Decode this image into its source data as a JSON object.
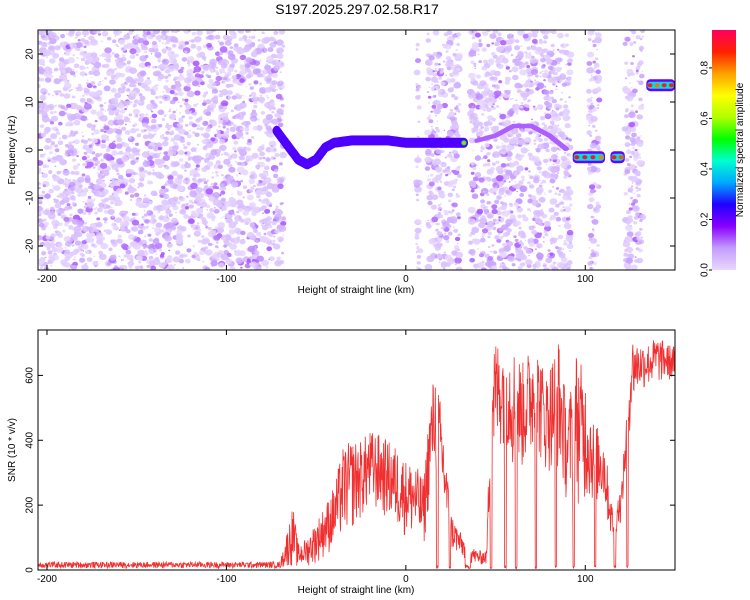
{
  "title": "S197.2025.297.02.58.R17",
  "chart_data": [
    {
      "type": "heatmap",
      "xlabel": "Height of straight line (km)",
      "ylabel": "Frequency (Hz)",
      "xlim": [
        -205,
        150
      ],
      "ylim": [
        -25,
        25
      ],
      "x_ticks": [
        -200,
        -100,
        0,
        100
      ],
      "y_ticks": [
        -20,
        -10,
        0,
        10,
        20
      ],
      "colorbar": {
        "label": "Normalized spectral amplitude",
        "range": [
          0,
          0.95
        ],
        "ticks": [
          0.0,
          0.2,
          0.4,
          0.6,
          0.8
        ],
        "stops": [
          "#e8d8ff",
          "#c49cff",
          "#8800ff",
          "#2000ff",
          "#00a8ff",
          "#00ffd0",
          "#00ff00",
          "#b0ff00",
          "#ffff00",
          "#ffa000",
          "#ff2000",
          "#ff0060"
        ]
      },
      "noise_regions": [
        [
          -205,
          -74
        ],
        [
          -74,
          -68
        ],
        [
          6,
          8
        ],
        [
          12,
          30
        ],
        [
          36,
          92
        ],
        [
          102,
          108
        ],
        [
          122,
          132
        ]
      ],
      "ridge": [
        {
          "x": -72,
          "y": 4
        },
        {
          "x": -66,
          "y": 1
        },
        {
          "x": -60,
          "y": -2
        },
        {
          "x": -55,
          "y": -3
        },
        {
          "x": -50,
          "y": -2
        },
        {
          "x": -45,
          "y": 0.5
        },
        {
          "x": -40,
          "y": 1.5
        },
        {
          "x": -30,
          "y": 2
        },
        {
          "x": -20,
          "y": 2
        },
        {
          "x": -10,
          "y": 2
        },
        {
          "x": 0,
          "y": 1.5
        },
        {
          "x": 10,
          "y": 1.5
        },
        {
          "x": 20,
          "y": 1.5
        },
        {
          "x": 33,
          "y": 1.5
        }
      ],
      "faint_ridge": [
        {
          "x": 40,
          "y": 2
        },
        {
          "x": 50,
          "y": 3
        },
        {
          "x": 60,
          "y": 5
        },
        {
          "x": 70,
          "y": 5
        },
        {
          "x": 80,
          "y": 3
        },
        {
          "x": 90,
          "y": 0
        }
      ],
      "segments": [
        {
          "x0": 93,
          "x1": 111,
          "y": -1.5
        },
        {
          "x0": 114,
          "x1": 122,
          "y": -1.5
        },
        {
          "x0": 134,
          "x1": 150,
          "y": 13.5
        }
      ]
    },
    {
      "type": "line",
      "xlabel": "Height of straight line (km)",
      "ylabel": "SNR (10 * v/v)",
      "xlim": [
        -205,
        150
      ],
      "ylim": [
        0,
        740
      ],
      "x_ticks": [
        -200,
        -100,
        0,
        100
      ],
      "y_ticks": [
        0,
        200,
        400,
        600
      ],
      "color": "#f03030",
      "envelope": [
        {
          "x": -205,
          "lo": 5,
          "hi": 25
        },
        {
          "x": -70,
          "lo": 5,
          "hi": 25
        },
        {
          "x": -63,
          "lo": 10,
          "hi": 200
        },
        {
          "x": -60,
          "lo": 5,
          "hi": 80
        },
        {
          "x": -55,
          "lo": 10,
          "hi": 100
        },
        {
          "x": -50,
          "lo": 20,
          "hi": 150
        },
        {
          "x": -45,
          "lo": 40,
          "hi": 200
        },
        {
          "x": -40,
          "lo": 60,
          "hi": 260
        },
        {
          "x": -35,
          "lo": 100,
          "hi": 380
        },
        {
          "x": -30,
          "lo": 120,
          "hi": 400
        },
        {
          "x": -25,
          "lo": 150,
          "hi": 400
        },
        {
          "x": -20,
          "lo": 180,
          "hi": 430
        },
        {
          "x": -15,
          "lo": 170,
          "hi": 420
        },
        {
          "x": -10,
          "lo": 150,
          "hi": 400
        },
        {
          "x": -5,
          "lo": 120,
          "hi": 380
        },
        {
          "x": 0,
          "lo": 100,
          "hi": 340
        },
        {
          "x": 5,
          "lo": 90,
          "hi": 330
        },
        {
          "x": 10,
          "lo": 60,
          "hi": 280
        },
        {
          "x": 13,
          "lo": 200,
          "hi": 500
        },
        {
          "x": 16,
          "lo": 300,
          "hi": 620
        },
        {
          "x": 20,
          "lo": 200,
          "hi": 500
        },
        {
          "x": 25,
          "lo": 60,
          "hi": 180
        },
        {
          "x": 30,
          "lo": 40,
          "hi": 120
        },
        {
          "x": 35,
          "lo": 20,
          "hi": 80
        },
        {
          "x": 40,
          "lo": 15,
          "hi": 60
        },
        {
          "x": 45,
          "lo": 15,
          "hi": 60
        },
        {
          "x": 48,
          "lo": 300,
          "hi": 720
        },
        {
          "x": 55,
          "lo": 400,
          "hi": 700
        },
        {
          "x": 60,
          "lo": 300,
          "hi": 690
        },
        {
          "x": 65,
          "lo": 300,
          "hi": 640
        },
        {
          "x": 72,
          "lo": 350,
          "hi": 720
        },
        {
          "x": 78,
          "lo": 300,
          "hi": 600
        },
        {
          "x": 85,
          "lo": 300,
          "hi": 720
        },
        {
          "x": 90,
          "lo": 200,
          "hi": 500
        },
        {
          "x": 95,
          "lo": 200,
          "hi": 680
        },
        {
          "x": 100,
          "lo": 200,
          "hi": 600
        },
        {
          "x": 105,
          "lo": 200,
          "hi": 450
        },
        {
          "x": 110,
          "lo": 200,
          "hi": 430
        },
        {
          "x": 115,
          "lo": 80,
          "hi": 200
        },
        {
          "x": 120,
          "lo": 150,
          "hi": 250
        },
        {
          "x": 126,
          "lo": 500,
          "hi": 720
        },
        {
          "x": 130,
          "lo": 550,
          "hi": 700
        },
        {
          "x": 135,
          "lo": 560,
          "hi": 700
        },
        {
          "x": 140,
          "lo": 570,
          "hi": 720
        },
        {
          "x": 145,
          "lo": 580,
          "hi": 700
        },
        {
          "x": 150,
          "lo": 580,
          "hi": 690
        }
      ],
      "dropouts": [
        [
          17,
          18
        ],
        [
          24,
          25
        ],
        [
          33,
          36
        ],
        [
          47,
          48
        ],
        [
          55,
          56
        ],
        [
          61,
          62
        ],
        [
          72,
          73
        ],
        [
          83,
          84
        ],
        [
          93,
          94
        ],
        [
          105,
          106
        ],
        [
          116,
          117
        ],
        [
          123,
          124
        ]
      ]
    }
  ]
}
